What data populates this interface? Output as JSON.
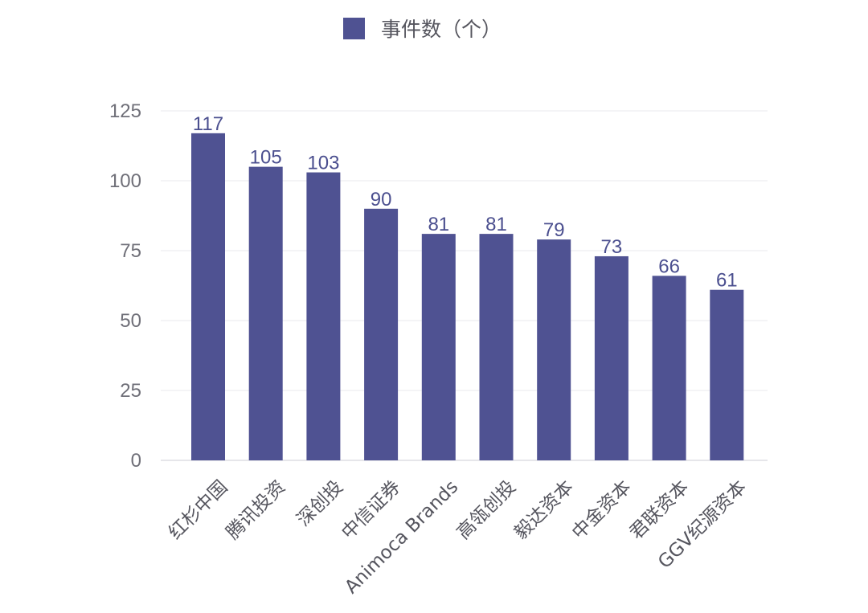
{
  "chart_data": {
    "type": "bar",
    "categories": [
      "红杉中国",
      "腾讯投资",
      "深创投",
      "中信证券",
      "Animoca Brands",
      "高瓴创投",
      "毅达资本",
      "中金资本",
      "君联资本",
      "GGV纪源资本"
    ],
    "series": [
      {
        "name": "事件数（个）",
        "values": [
          117,
          105,
          103,
          90,
          81,
          81,
          79,
          73,
          66,
          61
        ],
        "color": "#4f5292"
      }
    ],
    "ylim": [
      0,
      125
    ],
    "yticks": [
      0,
      25,
      50,
      75,
      100,
      125
    ],
    "grid": true,
    "legend": "top"
  }
}
